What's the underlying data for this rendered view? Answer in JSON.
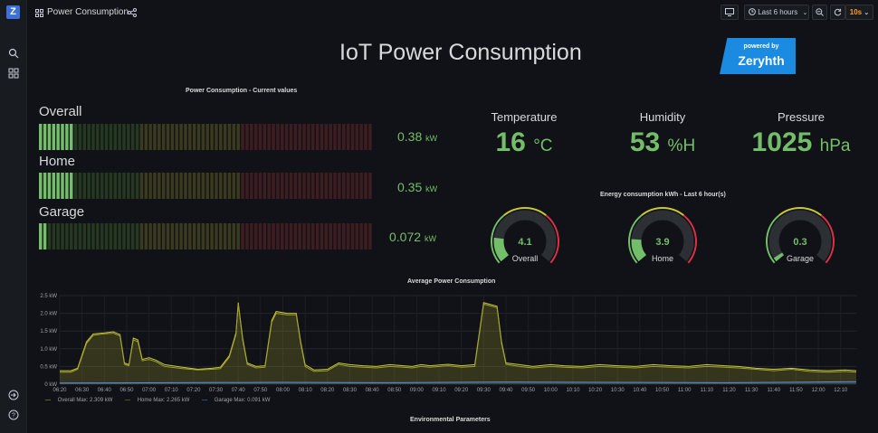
{
  "topbar": {
    "dashboard_title": "Power Consumption",
    "time_range": "Last 6 hours",
    "refresh_interval": "10s"
  },
  "header": {
    "title": "IoT Power Consumption",
    "badge_top": "powered by",
    "badge_brand": "Zeryhth"
  },
  "bars_panel": {
    "title": "Power Consumption - Current values",
    "items": [
      {
        "label": "Overall",
        "value": "0.38",
        "unit": "kW",
        "fraction": 0.1
      },
      {
        "label": "Home",
        "value": "0.35",
        "unit": "kW",
        "fraction": 0.095
      },
      {
        "label": "Garage",
        "value": "0.072",
        "unit": "kW",
        "fraction": 0.02
      }
    ]
  },
  "stats": [
    {
      "label": "Temperature",
      "value": "16",
      "unit": "°C"
    },
    {
      "label": "Humidity",
      "value": "53",
      "unit": "%H"
    },
    {
      "label": "Pressure",
      "value": "1025",
      "unit": "hPa"
    }
  ],
  "gauges_panel": {
    "title": "Energy consumption kWh - Last 6 hour(s)",
    "items": [
      {
        "label": "Overall",
        "value": "4.1",
        "fraction": 0.18
      },
      {
        "label": "Home",
        "value": "3.9",
        "fraction": 0.17
      },
      {
        "label": "Garage",
        "value": "0.3",
        "fraction": 0.03
      }
    ]
  },
  "env_panel": {
    "title": "Environmental Parameters"
  },
  "colors": {
    "green": "#73bf69",
    "yellow": "#c8c832",
    "red": "#e02f44",
    "accent": "#ff9830"
  },
  "chart_data": {
    "type": "area",
    "title": "Average Power Consumption",
    "y_ticks": [
      "0 kW",
      "0.5 kW",
      "1.0 kW",
      "1.5 kW",
      "2.0 kW",
      "2.5 kW"
    ],
    "ylim": [
      0,
      2.5
    ],
    "x_ticks": [
      "06:20",
      "06:30",
      "06:40",
      "06:50",
      "07:00",
      "07:10",
      "07:20",
      "07:30",
      "07:40",
      "07:50",
      "08:00",
      "08:10",
      "08:20",
      "08:30",
      "08:40",
      "08:50",
      "09:00",
      "09:10",
      "09:20",
      "09:30",
      "09:40",
      "09:50",
      "10:00",
      "10:10",
      "10:20",
      "10:30",
      "10:40",
      "10:50",
      "11:00",
      "11:10",
      "11:20",
      "11:30",
      "11:40",
      "11:50",
      "12:00",
      "12:10"
    ],
    "series": [
      {
        "name": "Overall",
        "legend": "Overall  Max: 2.309 kW",
        "color": "#c8c832",
        "points": [
          [
            0,
            0.38
          ],
          [
            5,
            0.38
          ],
          [
            8,
            0.45
          ],
          [
            12,
            1.2
          ],
          [
            15,
            1.42
          ],
          [
            20,
            1.45
          ],
          [
            24,
            1.48
          ],
          [
            27,
            1.4
          ],
          [
            29,
            0.6
          ],
          [
            31,
            0.55
          ],
          [
            33,
            1.3
          ],
          [
            35,
            1.25
          ],
          [
            37,
            0.7
          ],
          [
            40,
            0.75
          ],
          [
            43,
            0.68
          ],
          [
            47,
            0.55
          ],
          [
            55,
            0.48
          ],
          [
            62,
            0.42
          ],
          [
            68,
            0.45
          ],
          [
            72,
            0.48
          ],
          [
            76,
            0.8
          ],
          [
            79,
            1.45
          ],
          [
            80,
            2.3
          ],
          [
            82,
            1.3
          ],
          [
            84,
            0.6
          ],
          [
            88,
            0.5
          ],
          [
            92,
            0.52
          ],
          [
            95,
            1.8
          ],
          [
            97,
            2.05
          ],
          [
            102,
            2.0
          ],
          [
            106,
            2.0
          ],
          [
            108,
            1.2
          ],
          [
            110,
            0.55
          ],
          [
            114,
            0.4
          ],
          [
            120,
            0.42
          ],
          [
            125,
            0.6
          ],
          [
            130,
            0.55
          ],
          [
            136,
            0.52
          ],
          [
            142,
            0.5
          ],
          [
            148,
            0.55
          ],
          [
            154,
            0.52
          ],
          [
            158,
            0.5
          ],
          [
            162,
            0.55
          ],
          [
            166,
            0.52
          ],
          [
            174,
            0.56
          ],
          [
            180,
            0.52
          ],
          [
            186,
            0.55
          ],
          [
            190,
            2.3
          ],
          [
            196,
            2.2
          ],
          [
            198,
            1.2
          ],
          [
            200,
            0.6
          ],
          [
            206,
            0.55
          ],
          [
            212,
            0.5
          ],
          [
            220,
            0.55
          ],
          [
            226,
            0.52
          ],
          [
            234,
            0.5
          ],
          [
            242,
            0.55
          ],
          [
            250,
            0.52
          ],
          [
            258,
            0.5
          ],
          [
            266,
            0.55
          ],
          [
            274,
            0.52
          ],
          [
            282,
            0.5
          ],
          [
            290,
            0.55
          ],
          [
            298,
            0.52
          ],
          [
            304,
            0.5
          ],
          [
            312,
            0.45
          ],
          [
            320,
            0.42
          ],
          [
            328,
            0.45
          ],
          [
            336,
            0.4
          ],
          [
            344,
            0.38
          ],
          [
            352,
            0.4
          ],
          [
            357,
            0.38
          ]
        ]
      },
      {
        "name": "Home",
        "legend": "Home  Max: 2.265 kW",
        "color": "#a0a030",
        "points": [
          [
            0,
            0.34
          ],
          [
            5,
            0.34
          ],
          [
            8,
            0.42
          ],
          [
            12,
            1.15
          ],
          [
            15,
            1.38
          ],
          [
            20,
            1.42
          ],
          [
            24,
            1.44
          ],
          [
            27,
            1.36
          ],
          [
            29,
            0.56
          ],
          [
            31,
            0.52
          ],
          [
            33,
            1.25
          ],
          [
            35,
            1.2
          ],
          [
            37,
            0.66
          ],
          [
            40,
            0.7
          ],
          [
            43,
            0.64
          ],
          [
            47,
            0.5
          ],
          [
            55,
            0.44
          ],
          [
            62,
            0.4
          ],
          [
            68,
            0.42
          ],
          [
            72,
            0.44
          ],
          [
            76,
            0.76
          ],
          [
            79,
            1.4
          ],
          [
            80,
            2.26
          ],
          [
            82,
            1.25
          ],
          [
            84,
            0.56
          ],
          [
            88,
            0.46
          ],
          [
            92,
            0.48
          ],
          [
            95,
            1.75
          ],
          [
            97,
            2.0
          ],
          [
            102,
            1.96
          ],
          [
            106,
            1.96
          ],
          [
            108,
            1.15
          ],
          [
            110,
            0.5
          ],
          [
            114,
            0.36
          ],
          [
            120,
            0.38
          ],
          [
            125,
            0.56
          ],
          [
            130,
            0.5
          ],
          [
            136,
            0.48
          ],
          [
            142,
            0.46
          ],
          [
            148,
            0.5
          ],
          [
            154,
            0.48
          ],
          [
            158,
            0.46
          ],
          [
            162,
            0.5
          ],
          [
            166,
            0.48
          ],
          [
            174,
            0.52
          ],
          [
            180,
            0.48
          ],
          [
            186,
            0.5
          ],
          [
            190,
            2.26
          ],
          [
            196,
            2.16
          ],
          [
            198,
            1.15
          ],
          [
            200,
            0.56
          ],
          [
            206,
            0.5
          ],
          [
            212,
            0.46
          ],
          [
            220,
            0.5
          ],
          [
            226,
            0.48
          ],
          [
            234,
            0.46
          ],
          [
            242,
            0.5
          ],
          [
            250,
            0.48
          ],
          [
            258,
            0.46
          ],
          [
            266,
            0.5
          ],
          [
            274,
            0.48
          ],
          [
            282,
            0.46
          ],
          [
            290,
            0.5
          ],
          [
            298,
            0.48
          ],
          [
            304,
            0.46
          ],
          [
            312,
            0.42
          ],
          [
            320,
            0.38
          ],
          [
            328,
            0.42
          ],
          [
            336,
            0.36
          ],
          [
            344,
            0.34
          ],
          [
            352,
            0.36
          ],
          [
            357,
            0.34
          ]
        ]
      },
      {
        "name": "Garage",
        "legend": "Garage  Max: 0.091 kW",
        "color": "#5794f2",
        "points": [
          [
            0,
            0.03
          ],
          [
            50,
            0.04
          ],
          [
            100,
            0.05
          ],
          [
            150,
            0.04
          ],
          [
            200,
            0.06
          ],
          [
            250,
            0.05
          ],
          [
            300,
            0.04
          ],
          [
            357,
            0.07
          ]
        ]
      }
    ]
  }
}
